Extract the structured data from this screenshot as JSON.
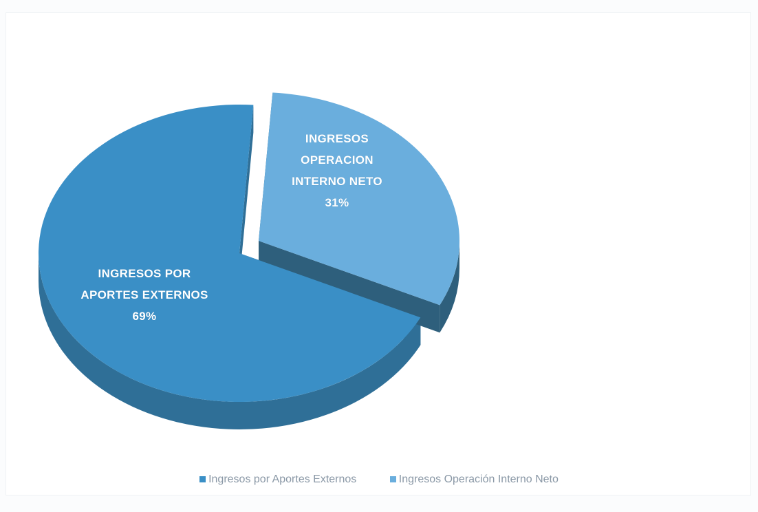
{
  "chart_data": {
    "type": "pie",
    "three_d": true,
    "exploded": true,
    "title": "",
    "slices": [
      {
        "label_lines": [
          "INGRESOS POR",
          "APORTES EXTERNOS"
        ],
        "percent_text": "69%",
        "value": 69,
        "color": "#3a8fc6",
        "legend": "Ingresos por Aportes Externos"
      },
      {
        "label_lines": [
          "INGRESOS",
          "OPERACION",
          "INTERNO NETO"
        ],
        "percent_text": "31%",
        "value": 31,
        "color": "#6aaedd",
        "legend": "Ingresos Operación Interno Neto"
      }
    ],
    "legend_position": "bottom"
  },
  "colors": {
    "slice_1_side": "#2f6f97",
    "slice_2_side": "#2e5f7c",
    "legend_text": "#8a98a6"
  }
}
